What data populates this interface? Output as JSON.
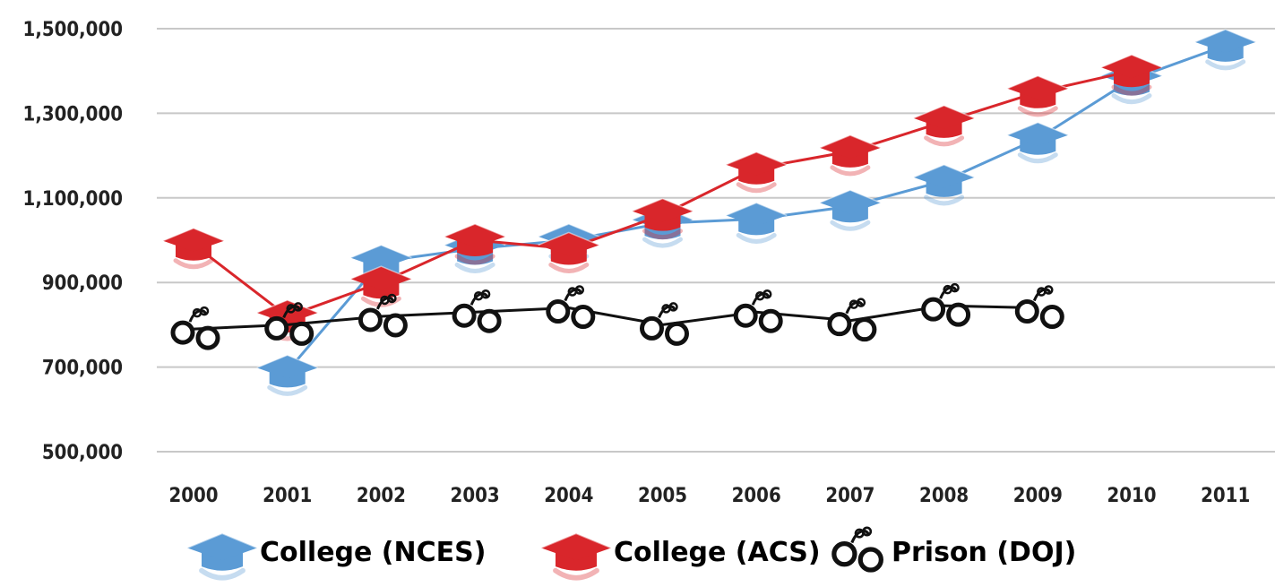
{
  "chart_data": {
    "type": "line",
    "categories": [
      "2000",
      "2001",
      "2002",
      "2003",
      "2004",
      "2005",
      "2006",
      "2007",
      "2008",
      "2009",
      "2010",
      "2011"
    ],
    "y_ticks": [
      "500,000",
      "700,000",
      "900,000",
      "1,100,000",
      "1,300,000",
      "1,500,000"
    ],
    "ylim": [
      500000,
      1500000
    ],
    "grid": true,
    "legend_position": "bottom",
    "series": [
      {
        "name": "College (NCES)",
        "color": "#5b9bd5",
        "icon": "graduation-cap-icon",
        "values": [
          null,
          690000,
          950000,
          980000,
          1000000,
          1040000,
          1050000,
          1080000,
          1140000,
          1240000,
          1380000,
          1460000
        ]
      },
      {
        "name": "College (ACS)",
        "color": "#d9262b",
        "icon": "graduation-cap-icon",
        "values": [
          990000,
          820000,
          900000,
          1000000,
          980000,
          1060000,
          1170000,
          1210000,
          1280000,
          1350000,
          1400000,
          null
        ]
      },
      {
        "name": "Prison (DOJ)",
        "color": "#111111",
        "icon": "handcuffs-icon",
        "values": [
          790000,
          800000,
          820000,
          830000,
          840000,
          800000,
          830000,
          810000,
          845000,
          840000,
          null,
          null
        ]
      }
    ]
  }
}
